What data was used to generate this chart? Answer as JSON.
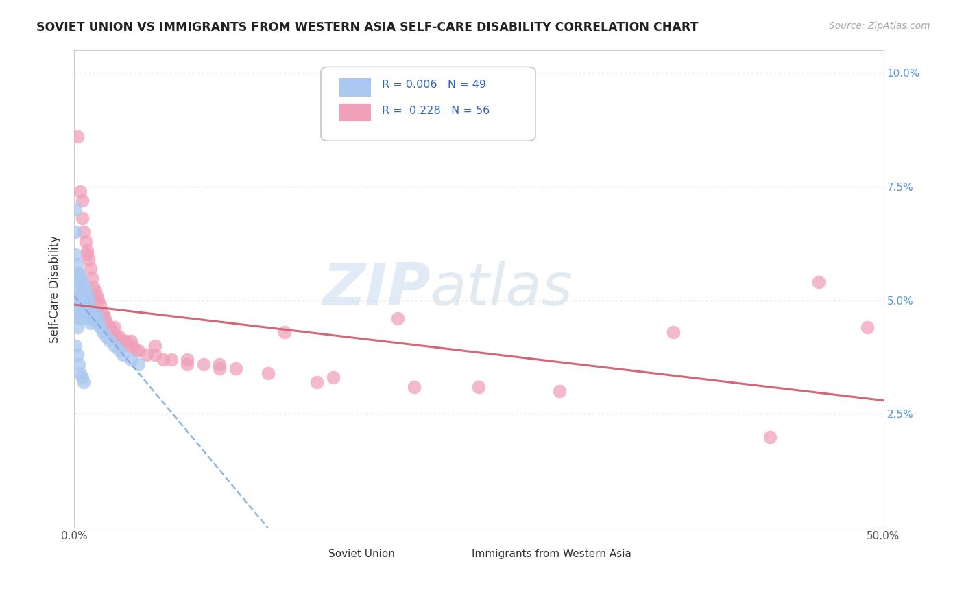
{
  "title": "SOVIET UNION VS IMMIGRANTS FROM WESTERN ASIA SELF-CARE DISABILITY CORRELATION CHART",
  "source": "Source: ZipAtlas.com",
  "ylabel": "Self-Care Disability",
  "xlim": [
    0.0,
    0.5
  ],
  "ylim": [
    0.0,
    0.105
  ],
  "color_blue": "#aac8f0",
  "color_pink": "#f0a0b8",
  "color_blue_line": "#7aaadd",
  "color_pink_line": "#d06070",
  "watermark_zip": "ZIP",
  "watermark_atlas": "atlas",
  "background_color": "#ffffff",
  "grid_color": "#cccccc",
  "soviet_union_x": [
    0.001,
    0.001,
    0.001,
    0.0015,
    0.002,
    0.002,
    0.002,
    0.002,
    0.002,
    0.003,
    0.003,
    0.003,
    0.003,
    0.004,
    0.004,
    0.004,
    0.005,
    0.005,
    0.005,
    0.006,
    0.006,
    0.007,
    0.007,
    0.008,
    0.008,
    0.009,
    0.009,
    0.01,
    0.01,
    0.011,
    0.012,
    0.013,
    0.014,
    0.015,
    0.016,
    0.018,
    0.02,
    0.022,
    0.025,
    0.028,
    0.03,
    0.035,
    0.04,
    0.001,
    0.002,
    0.003,
    0.004,
    0.005,
    0.006
  ],
  "soviet_union_y": [
    0.07,
    0.065,
    0.06,
    0.058,
    0.056,
    0.054,
    0.051,
    0.048,
    0.044,
    0.056,
    0.053,
    0.049,
    0.046,
    0.055,
    0.051,
    0.047,
    0.054,
    0.05,
    0.046,
    0.053,
    0.049,
    0.052,
    0.048,
    0.051,
    0.047,
    0.05,
    0.046,
    0.048,
    0.045,
    0.047,
    0.046,
    0.047,
    0.045,
    0.046,
    0.044,
    0.043,
    0.042,
    0.041,
    0.04,
    0.039,
    0.038,
    0.037,
    0.036,
    0.04,
    0.038,
    0.036,
    0.034,
    0.033,
    0.032
  ],
  "western_asia_x": [
    0.002,
    0.004,
    0.005,
    0.006,
    0.007,
    0.008,
    0.009,
    0.01,
    0.011,
    0.012,
    0.013,
    0.014,
    0.015,
    0.016,
    0.018,
    0.019,
    0.02,
    0.022,
    0.024,
    0.026,
    0.028,
    0.03,
    0.032,
    0.034,
    0.036,
    0.038,
    0.04,
    0.045,
    0.05,
    0.055,
    0.06,
    0.07,
    0.08,
    0.09,
    0.1,
    0.13,
    0.15,
    0.21,
    0.005,
    0.008,
    0.012,
    0.018,
    0.025,
    0.035,
    0.05,
    0.07,
    0.09,
    0.12,
    0.16,
    0.2,
    0.25,
    0.3,
    0.37,
    0.43,
    0.46,
    0.49
  ],
  "western_asia_y": [
    0.086,
    0.074,
    0.068,
    0.065,
    0.063,
    0.061,
    0.059,
    0.057,
    0.055,
    0.053,
    0.052,
    0.051,
    0.05,
    0.049,
    0.047,
    0.046,
    0.045,
    0.044,
    0.043,
    0.042,
    0.042,
    0.041,
    0.041,
    0.04,
    0.04,
    0.039,
    0.039,
    0.038,
    0.038,
    0.037,
    0.037,
    0.036,
    0.036,
    0.035,
    0.035,
    0.043,
    0.032,
    0.031,
    0.072,
    0.06,
    0.05,
    0.047,
    0.044,
    0.041,
    0.04,
    0.037,
    0.036,
    0.034,
    0.033,
    0.046,
    0.031,
    0.03,
    0.043,
    0.02,
    0.054,
    0.044
  ]
}
